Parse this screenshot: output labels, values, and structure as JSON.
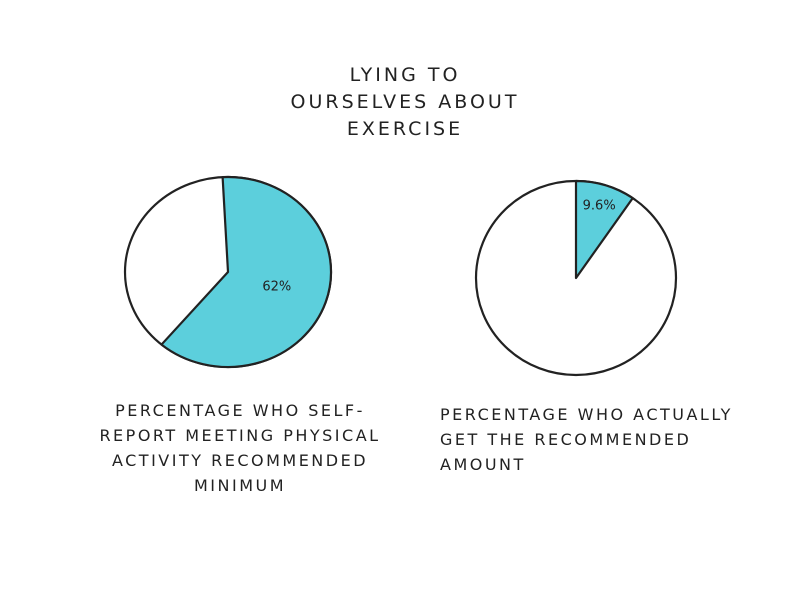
{
  "chart_data": [
    {
      "type": "pie",
      "title": "LYING TO OURSELVES ABOUT EXERCISE",
      "values": [
        62
      ],
      "value_labels": [
        "62%"
      ],
      "colors": [
        "#5ccfdc"
      ],
      "caption": "PERCENTAGE WHO SELF-REPORT MEETING PHYSICAL ACTIVITY RECOMMENDED MINIMUM"
    },
    {
      "type": "pie",
      "values": [
        9.6
      ],
      "value_labels": [
        "9.6%"
      ],
      "colors": [
        "#5ccfdc"
      ],
      "caption": "PERCENTAGE WHO ACTUALLY GET THE RECOMMENDED AMOUNT"
    }
  ]
}
